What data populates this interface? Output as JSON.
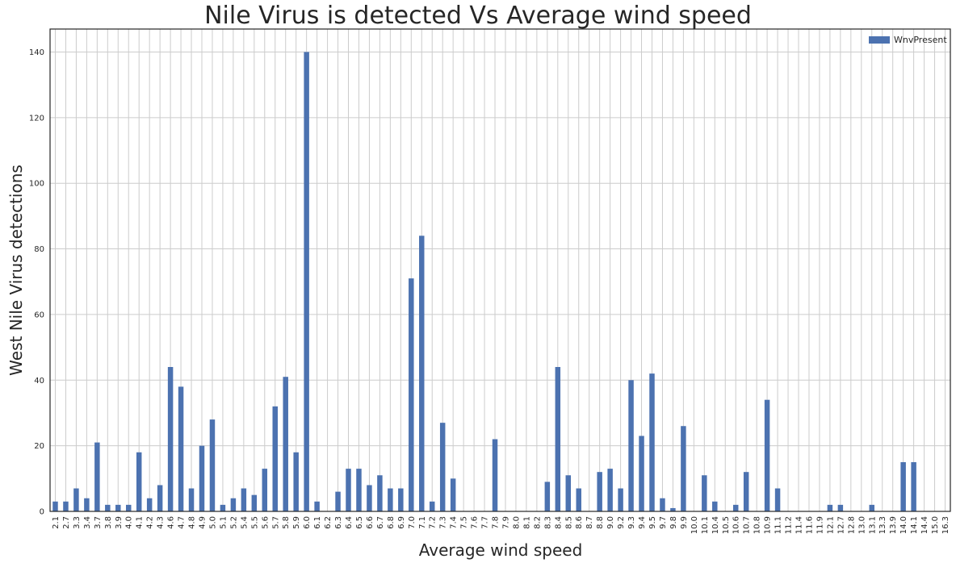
{
  "chart_data": {
    "type": "bar",
    "title": "Nile Virus is detected Vs Average wind speed",
    "xlabel": "Average wind speed",
    "ylabel": "West Nile Virus detections",
    "ylim": [
      0,
      147
    ],
    "yticks": [
      0,
      20,
      40,
      60,
      80,
      100,
      120,
      140
    ],
    "grid": true,
    "legend_position": "top-right",
    "bar_color": "#4c72b0",
    "categories": [
      "2.1",
      "2.7",
      "3.3",
      "3.4",
      "3.7",
      "3.8",
      "3.9",
      "4.0",
      "4.1",
      "4.2",
      "4.3",
      "4.6",
      "4.7",
      "4.8",
      "4.9",
      "5.0",
      "5.1",
      "5.2",
      "5.4",
      "5.5",
      "5.6",
      "5.7",
      "5.8",
      "5.9",
      "6.0",
      "6.1",
      "6.2",
      "6.3",
      "6.4",
      "6.5",
      "6.6",
      "6.7",
      "6.8",
      "6.9",
      "7.0",
      "7.1",
      "7.2",
      "7.3",
      "7.4",
      "7.5",
      "7.6",
      "7.7",
      "7.8",
      "7.9",
      "8.0",
      "8.1",
      "8.2",
      "8.3",
      "8.4",
      "8.5",
      "8.6",
      "8.7",
      "8.8",
      "9.0",
      "9.2",
      "9.3",
      "9.4",
      "9.5",
      "9.7",
      "9.8",
      "9.9",
      "10.0",
      "10.1",
      "10.4",
      "10.5",
      "10.6",
      "10.7",
      "10.8",
      "10.9",
      "11.1",
      "11.2",
      "11.4",
      "11.6",
      "11.9",
      "12.1",
      "12.7",
      "12.8",
      "13.0",
      "13.1",
      "13.3",
      "13.9",
      "14.0",
      "14.1",
      "14.4",
      "15.0",
      "16.3"
    ],
    "series": [
      {
        "name": "WnvPresent",
        "values": [
          3,
          3,
          7,
          4,
          21,
          2,
          2,
          2,
          18,
          4,
          8,
          44,
          38,
          7,
          20,
          28,
          2,
          4,
          7,
          5,
          13,
          32,
          41,
          18,
          140,
          3,
          0,
          6,
          13,
          13,
          8,
          11,
          7,
          7,
          71,
          84,
          3,
          27,
          10,
          0,
          0,
          0,
          22,
          0,
          0,
          0,
          0,
          9,
          44,
          11,
          7,
          0,
          12,
          13,
          7,
          40,
          23,
          42,
          4,
          1,
          26,
          0,
          11,
          3,
          0,
          2,
          12,
          0,
          34,
          7,
          0,
          0,
          0,
          0,
          2,
          2,
          0,
          0,
          2,
          0,
          0,
          15,
          15,
          0,
          0,
          0
        ]
      }
    ]
  }
}
